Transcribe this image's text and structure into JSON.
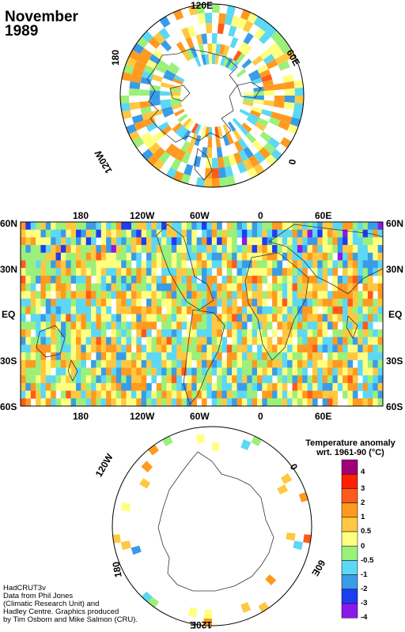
{
  "map": {
    "title_month": "November",
    "title_year": "1989",
    "north_polar_labels": [
      "120E",
      "60E",
      "0",
      "120W",
      "180"
    ],
    "band_lon_labels": [
      "180",
      "120W",
      "60W",
      "0",
      "60E"
    ],
    "band_lat_labels": [
      "60N",
      "30N",
      "EQ",
      "30S",
      "60S"
    ],
    "south_polar_labels": [
      "120W",
      "0",
      "60E",
      "180",
      "120E"
    ]
  },
  "legend": {
    "title_line1": "Temperature anomaly",
    "title_line2": "wrt. 1961-90  (°C)",
    "ticks": [
      "4",
      "3",
      "2",
      "1",
      "0.5",
      "0",
      "-0.5",
      "-1",
      "-2",
      "-3",
      "-4"
    ],
    "colors": [
      "#a0007a",
      "#ff2000",
      "#ff5a1a",
      "#ff9a20",
      "#ffc840",
      "#ffff80",
      "#9bf07a",
      "#5cd8f5",
      "#3a9ce8",
      "#1e3cf2",
      "#8a1aec"
    ]
  },
  "credits": {
    "line1": "HadCRUT3v",
    "line2": "Data from Phil Jones",
    "line3": "(Climatic Research Unit) and",
    "line4": "Hadley Centre.  Graphics produced",
    "line5": "by Tim Osborn and Mike Salmon (CRU)."
  }
}
